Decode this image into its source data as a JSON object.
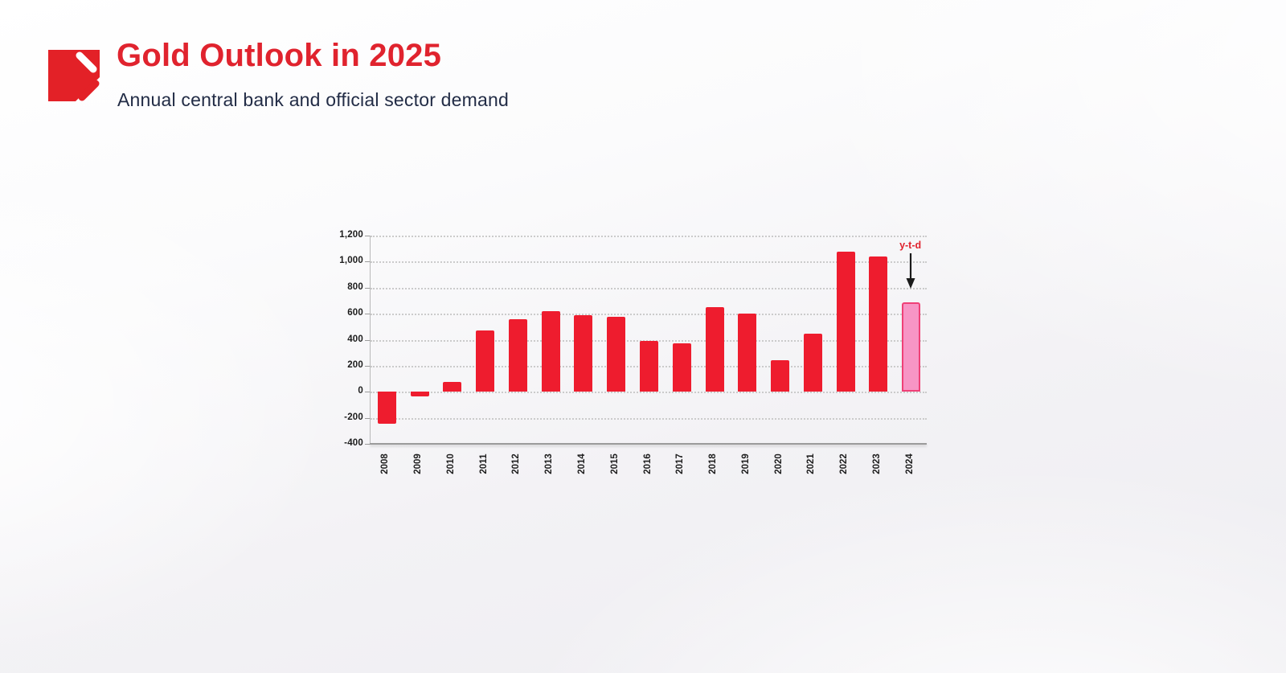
{
  "header": {
    "title": "Gold Outlook in 2025",
    "subtitle": "Annual central bank and official sector demand",
    "title_color": "#E0232E",
    "subtitle_color": "#222C46",
    "logo_color": "#E32127"
  },
  "chart_data": {
    "type": "bar",
    "title": "Annual central bank and official sector demand",
    "xlabel": "",
    "ylabel": "",
    "categories": [
      "2008",
      "2009",
      "2010",
      "2011",
      "2012",
      "2013",
      "2014",
      "2015",
      "2016",
      "2017",
      "2018",
      "2019",
      "2020",
      "2021",
      "2022",
      "2023",
      "2024"
    ],
    "values": [
      -245,
      -35,
      75,
      470,
      560,
      620,
      590,
      575,
      390,
      375,
      650,
      600,
      245,
      445,
      1075,
      1040,
      690
    ],
    "ylim": [
      -400,
      1200
    ],
    "ytick_interval": 200,
    "yticks": [
      "1,200",
      "1,000",
      "800",
      "600",
      "400",
      "200",
      "0",
      "-200",
      "-400"
    ],
    "grid": true,
    "legend": "none",
    "bar_color": "#EE1C2E",
    "ytd_index": 16,
    "ytd_fill": "#F795C5",
    "ytd_border": "#EF4077",
    "annotation": {
      "label": "y-t-d",
      "target": "2024",
      "arrow_color": "#1a1a1a",
      "label_color": "#E0232E"
    }
  }
}
